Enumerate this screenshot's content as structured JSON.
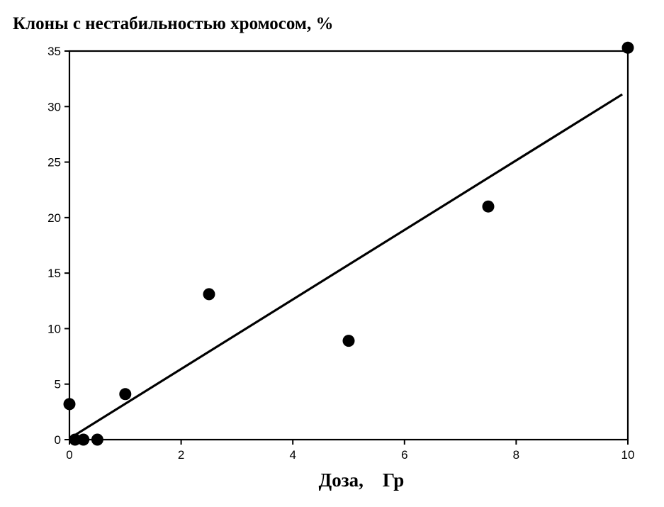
{
  "chart_data": {
    "type": "scatter",
    "title": "Клоны с нестабильностью хромосом, %",
    "xlabel": "Доза,    Гр",
    "ylabel": "",
    "xlim": [
      0,
      10
    ],
    "ylim": [
      0,
      35
    ],
    "x_ticks": [
      "0",
      "2",
      "4",
      "6",
      "8",
      "10"
    ],
    "y_ticks": [
      "0",
      "5",
      "10",
      "15",
      "20",
      "25",
      "30",
      "35"
    ],
    "grid": false,
    "legend": "none",
    "series": [
      {
        "points": [
          {
            "x": 0,
            "y": 3.2
          },
          {
            "x": 0.1,
            "y": 0
          },
          {
            "x": 0.25,
            "y": 0
          },
          {
            "x": 0.5,
            "y": 0
          },
          {
            "x": 1,
            "y": 4.1
          },
          {
            "x": 2.5,
            "y": 13.1
          },
          {
            "x": 5,
            "y": 8.9
          },
          {
            "x": 7.5,
            "y": 21
          },
          {
            "x": 10,
            "y": 35.3
          }
        ]
      }
    ],
    "fit_line": {
      "x": [
        0,
        9.9
      ],
      "y": [
        0.1,
        31.1
      ]
    },
    "colors": {
      "marker": "#000000",
      "line": "#000000",
      "axis": "#000000"
    }
  }
}
